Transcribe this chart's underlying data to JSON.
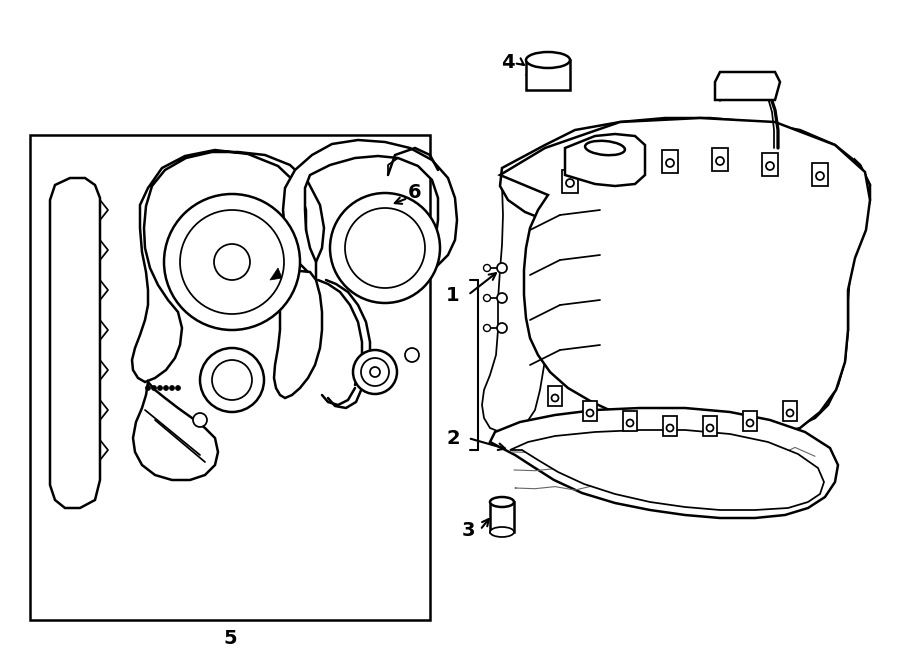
{
  "background_color": "#ffffff",
  "lc": "#000000",
  "lw": 1.8,
  "fig_width": 9.0,
  "fig_height": 6.62,
  "dpi": 100,
  "label_fontsize": 14,
  "label_bold": true
}
